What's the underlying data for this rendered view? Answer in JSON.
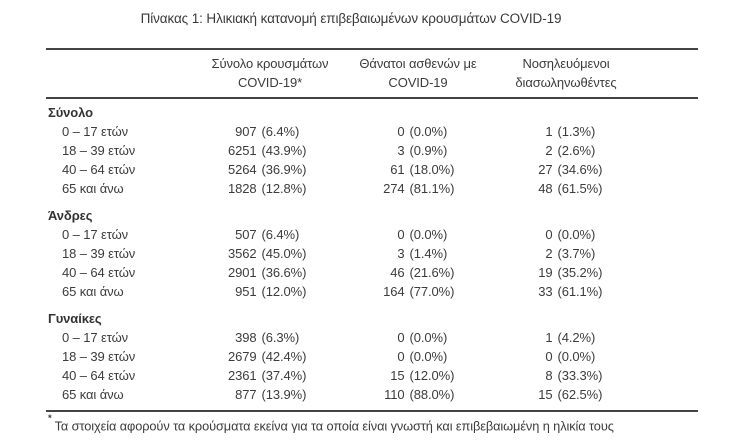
{
  "title": "Πίνακας 1: Ηλικιακή κατανομή επιβεβαιωμένων κρουσμάτων COVID-19",
  "table": {
    "headers": [
      {
        "line1": "Σύνολο κρουσμάτων",
        "line2": "COVID-19*"
      },
      {
        "line1": "Θάνατοι ασθενών με",
        "line2": "COVID-19"
      },
      {
        "line1": "Νοσηλευόμενοι",
        "line2": "διασωληνωθέντες"
      }
    ],
    "sections": [
      {
        "label": "Σύνολο",
        "rows": [
          {
            "label": "0 – 17 ετών",
            "cases_n": "907",
            "cases_pct": "(6.4%)",
            "deaths_n": "0",
            "deaths_pct": "(0.0%)",
            "intub_n": "1",
            "intub_pct": "(1.3%)"
          },
          {
            "label": "18 – 39 ετών",
            "cases_n": "6251",
            "cases_pct": "(43.9%)",
            "deaths_n": "3",
            "deaths_pct": "(0.9%)",
            "intub_n": "2",
            "intub_pct": "(2.6%)"
          },
          {
            "label": "40 – 64 ετών",
            "cases_n": "5264",
            "cases_pct": "(36.9%)",
            "deaths_n": "61",
            "deaths_pct": "(18.0%)",
            "intub_n": "27",
            "intub_pct": "(34.6%)"
          },
          {
            "label": "65 και άνω",
            "cases_n": "1828",
            "cases_pct": "(12.8%)",
            "deaths_n": "274",
            "deaths_pct": "(81.1%)",
            "intub_n": "48",
            "intub_pct": "(61.5%)"
          }
        ]
      },
      {
        "label": "Άνδρες",
        "rows": [
          {
            "label": "0 – 17 ετών",
            "cases_n": "507",
            "cases_pct": "(6.4%)",
            "deaths_n": "0",
            "deaths_pct": "(0.0%)",
            "intub_n": "0",
            "intub_pct": "(0.0%)"
          },
          {
            "label": "18 – 39 ετών",
            "cases_n": "3562",
            "cases_pct": "(45.0%)",
            "deaths_n": "3",
            "deaths_pct": "(1.4%)",
            "intub_n": "2",
            "intub_pct": "(3.7%)"
          },
          {
            "label": "40 – 64 ετών",
            "cases_n": "2901",
            "cases_pct": "(36.6%)",
            "deaths_n": "46",
            "deaths_pct": "(21.6%)",
            "intub_n": "19",
            "intub_pct": "(35.2%)"
          },
          {
            "label": "65 και άνω",
            "cases_n": "951",
            "cases_pct": "(12.0%)",
            "deaths_n": "164",
            "deaths_pct": "(77.0%)",
            "intub_n": "33",
            "intub_pct": "(61.1%)"
          }
        ]
      },
      {
        "label": "Γυναίκες",
        "rows": [
          {
            "label": "0 – 17 ετών",
            "cases_n": "398",
            "cases_pct": "(6.3%)",
            "deaths_n": "0",
            "deaths_pct": "(0.0%)",
            "intub_n": "1",
            "intub_pct": "(4.2%)"
          },
          {
            "label": "18 – 39 ετών",
            "cases_n": "2679",
            "cases_pct": "(42.4%)",
            "deaths_n": "0",
            "deaths_pct": "(0.0%)",
            "intub_n": "0",
            "intub_pct": "(0.0%)"
          },
          {
            "label": "40 – 64 ετών",
            "cases_n": "2361",
            "cases_pct": "(37.4%)",
            "deaths_n": "15",
            "deaths_pct": "(12.0%)",
            "intub_n": "8",
            "intub_pct": "(33.3%)"
          },
          {
            "label": "65 και άνω",
            "cases_n": "877",
            "cases_pct": "(13.9%)",
            "deaths_n": "110",
            "deaths_pct": "(88.0%)",
            "intub_n": "15",
            "intub_pct": "(62.5%)"
          }
        ]
      }
    ]
  },
  "footnote": {
    "marker": "*",
    "text": "Τα στοιχεία αφορούν τα κρούσματα εκείνα για τα οποία είναι γνωστή και επιβεβαιωμένη η ηλικία τους"
  }
}
